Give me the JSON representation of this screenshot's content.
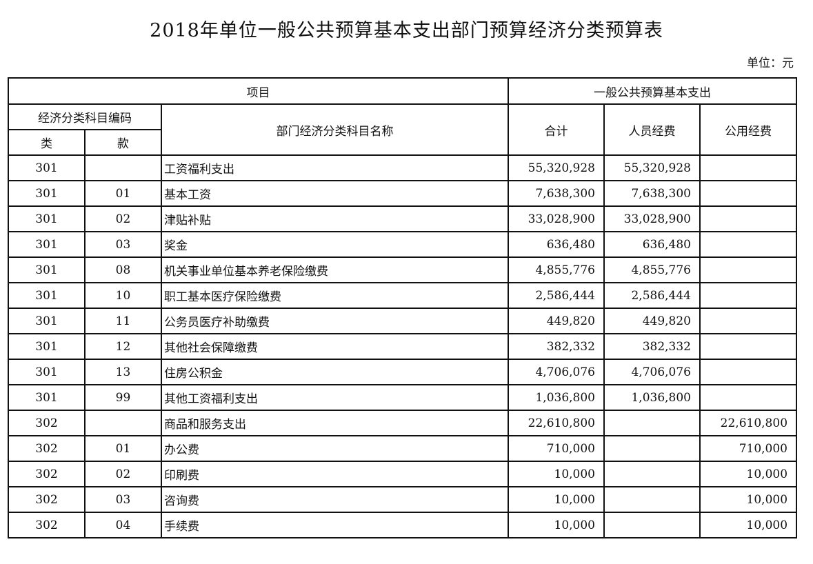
{
  "title": "2018年单位一般公共预算基本支出部门预算经济分类预算表",
  "unit": "单位：元",
  "header": {
    "project": "项目",
    "budget_group": "一般公共预算基本支出",
    "econ_code": "经济分类科目编码",
    "lei": "类",
    "kuan": "款",
    "name": "部门经济分类科目名称",
    "total": "合计",
    "personnel": "人员经费",
    "public": "公用经费"
  },
  "rows": [
    {
      "lei": "301",
      "kuan": "",
      "name": "工资福利支出",
      "total": "55,320,928",
      "personnel": "55,320,928",
      "public": ""
    },
    {
      "lei": "301",
      "kuan": "01",
      "name": "基本工资",
      "total": "7,638,300",
      "personnel": "7,638,300",
      "public": ""
    },
    {
      "lei": "301",
      "kuan": "02",
      "name": "津贴补贴",
      "total": "33,028,900",
      "personnel": "33,028,900",
      "public": ""
    },
    {
      "lei": "301",
      "kuan": "03",
      "name": "奖金",
      "total": "636,480",
      "personnel": "636,480",
      "public": ""
    },
    {
      "lei": "301",
      "kuan": "08",
      "name": "机关事业单位基本养老保险缴费",
      "total": "4,855,776",
      "personnel": "4,855,776",
      "public": ""
    },
    {
      "lei": "301",
      "kuan": "10",
      "name": "职工基本医疗保险缴费",
      "total": "2,586,444",
      "personnel": "2,586,444",
      "public": ""
    },
    {
      "lei": "301",
      "kuan": "11",
      "name": "公务员医疗补助缴费",
      "total": "449,820",
      "personnel": "449,820",
      "public": ""
    },
    {
      "lei": "301",
      "kuan": "12",
      "name": "其他社会保障缴费",
      "total": "382,332",
      "personnel": "382,332",
      "public": ""
    },
    {
      "lei": "301",
      "kuan": "13",
      "name": "住房公积金",
      "total": "4,706,076",
      "personnel": "4,706,076",
      "public": ""
    },
    {
      "lei": "301",
      "kuan": "99",
      "name": "其他工资福利支出",
      "total": "1,036,800",
      "personnel": "1,036,800",
      "public": ""
    },
    {
      "lei": "302",
      "kuan": "",
      "name": "商品和服务支出",
      "total": "22,610,800",
      "personnel": "",
      "public": "22,610,800"
    },
    {
      "lei": "302",
      "kuan": "01",
      "name": "办公费",
      "total": "710,000",
      "personnel": "",
      "public": "710,000"
    },
    {
      "lei": "302",
      "kuan": "02",
      "name": "印刷费",
      "total": "10,000",
      "personnel": "",
      "public": "10,000"
    },
    {
      "lei": "302",
      "kuan": "03",
      "name": "咨询费",
      "total": "10,000",
      "personnel": "",
      "public": "10,000"
    },
    {
      "lei": "302",
      "kuan": "04",
      "name": "手续费",
      "total": "10,000",
      "personnel": "",
      "public": "10,000"
    }
  ]
}
